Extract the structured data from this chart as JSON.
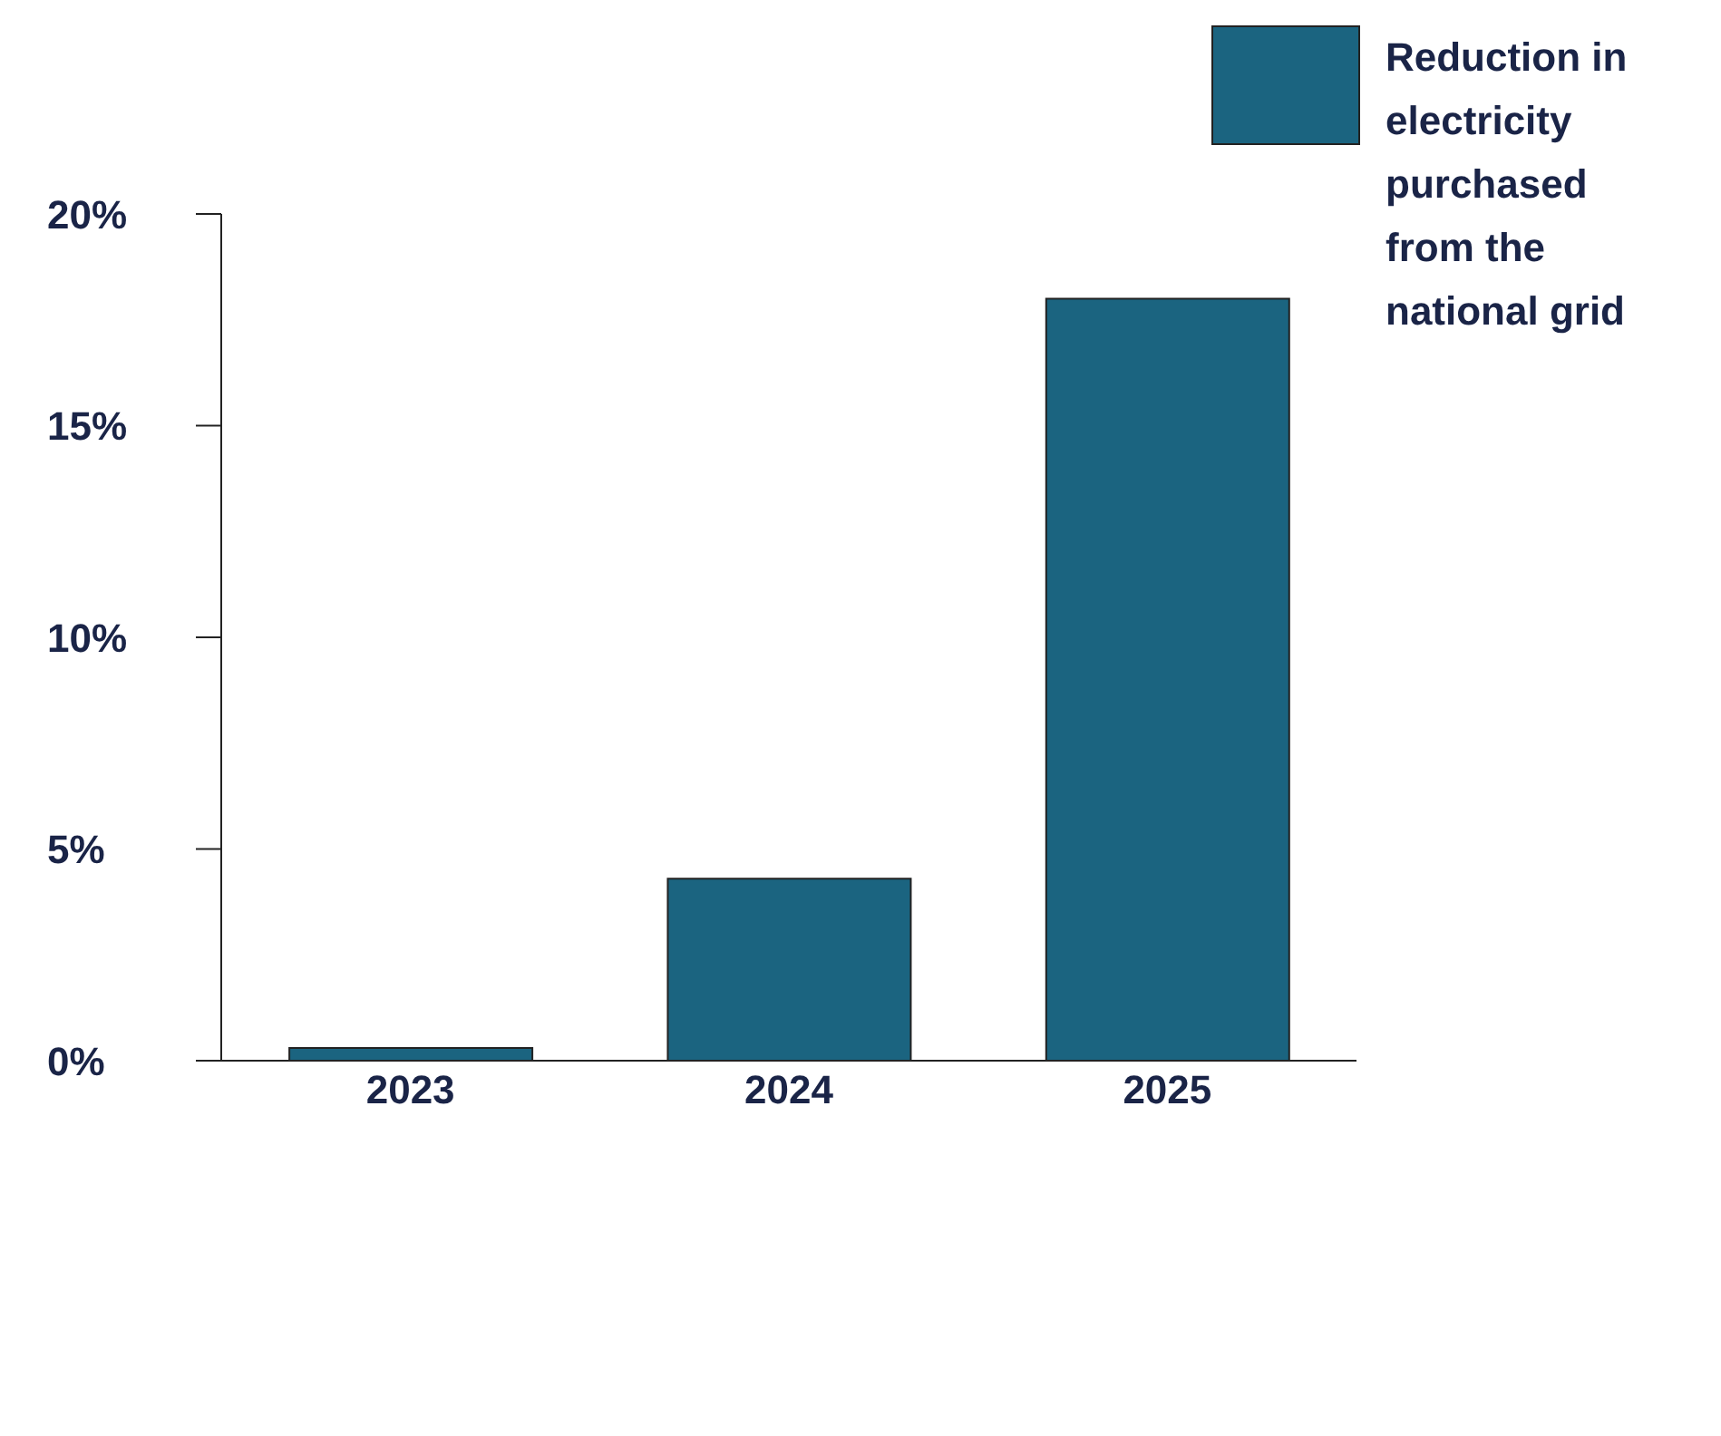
{
  "chart_data": {
    "type": "bar",
    "categories": [
      "2023",
      "2024",
      "2025"
    ],
    "series": [
      {
        "name": "Reduction in electricity purchased from the national grid",
        "color": "#1b6480",
        "values": [
          0.3,
          4.3,
          18
        ]
      }
    ],
    "ylim": [
      0,
      20
    ],
    "yticks": [
      {
        "value": 0,
        "label": "0%"
      },
      {
        "value": 5,
        "label": "5%"
      },
      {
        "value": 10,
        "label": "10%"
      },
      {
        "value": 15,
        "label": "15%"
      },
      {
        "value": 20,
        "label": "20%"
      }
    ],
    "grid": false,
    "legend": "top right"
  }
}
